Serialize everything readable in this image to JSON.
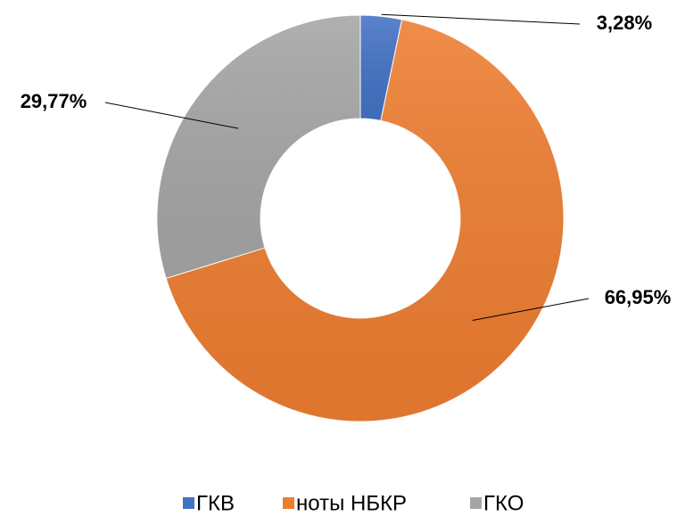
{
  "chart_data": {
    "type": "donut",
    "categories": [
      "ГКВ",
      "ноты НБКР",
      "ГКО"
    ],
    "values": [
      3.28,
      66.95,
      29.77
    ],
    "value_labels": [
      "3,28%",
      "66,95%",
      "29,77%"
    ],
    "colors": [
      "#4472c4",
      "#ed7d31",
      "#a5a5a5"
    ],
    "legend": "bottom"
  }
}
